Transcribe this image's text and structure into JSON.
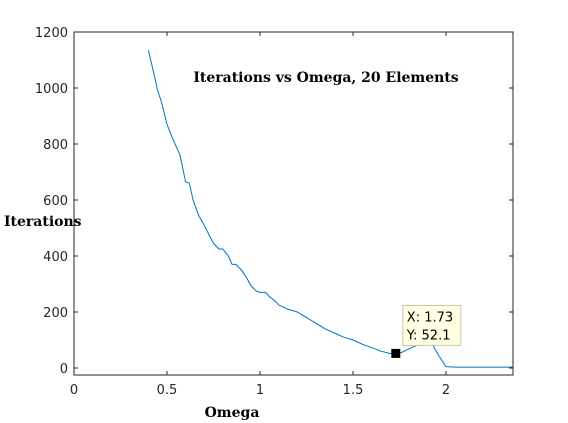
{
  "chart_data": {
    "type": "line",
    "title": "Iterations vs Omega, 20 Elements",
    "xlabel": "Omega",
    "ylabel": "Iterations",
    "xlim": [
      0,
      2.36
    ],
    "ylim": [
      -25,
      1200
    ],
    "xticks": [
      0,
      0.5,
      1,
      1.5,
      2
    ],
    "xtick_labels": [
      "0",
      "0.5",
      "1",
      "1.5",
      "2"
    ],
    "yticks": [
      0,
      200,
      400,
      600,
      800,
      1000,
      1200
    ],
    "ytick_labels": [
      "0",
      "200",
      "400",
      "600",
      "800",
      "1000",
      "1200"
    ],
    "grid": false,
    "series": [
      {
        "color": "#0072BD",
        "x": [
          0.4,
          0.43,
          0.45,
          0.47,
          0.5,
          0.53,
          0.55,
          0.57,
          0.6,
          0.62,
          0.64,
          0.67,
          0.7,
          0.73,
          0.75,
          0.78,
          0.8,
          0.83,
          0.85,
          0.87,
          0.9,
          0.93,
          0.95,
          0.98,
          1.0,
          1.03,
          1.05,
          1.08,
          1.1,
          1.15,
          1.2,
          1.25,
          1.3,
          1.35,
          1.4,
          1.45,
          1.5,
          1.55,
          1.6,
          1.65,
          1.7,
          1.73,
          1.76,
          1.8,
          1.84,
          1.88,
          1.92,
          1.96,
          2.0,
          2.05,
          2.1,
          2.2,
          2.36
        ],
        "y": [
          1135,
          1050,
          990,
          950,
          870,
          820,
          790,
          760,
          665,
          660,
          600,
          545,
          510,
          470,
          445,
          425,
          425,
          400,
          370,
          370,
          350,
          320,
          295,
          275,
          270,
          270,
          255,
          240,
          225,
          210,
          200,
          180,
          160,
          140,
          125,
          110,
          100,
          85,
          73,
          60,
          52,
          52.1,
          55,
          68,
          80,
          88,
          92,
          45,
          5,
          3,
          3,
          3,
          3
        ]
      }
    ],
    "datatip": {
      "x": 1.73,
      "y": 52.1,
      "line1": "X: 1.73",
      "line2": "Y: 52.1"
    }
  }
}
